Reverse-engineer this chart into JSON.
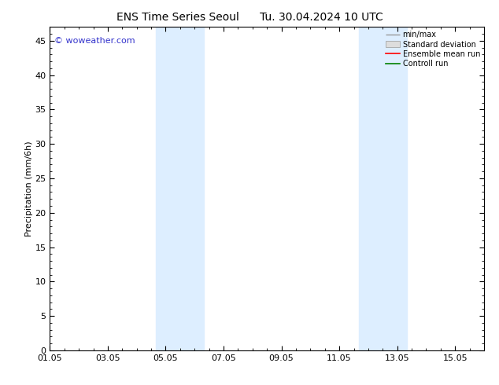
{
  "title_left": "ENS Time Series Seoul",
  "title_right": "Tu. 30.04.2024 10 UTC",
  "ylabel": "Precipitation (mm/6h)",
  "watermark": "© woweather.com",
  "watermark_color": "#3333cc",
  "ylim": [
    0,
    47
  ],
  "yticks": [
    0,
    5,
    10,
    15,
    20,
    25,
    30,
    35,
    40,
    45
  ],
  "total_days": 15,
  "xtick_labels": [
    "01.05",
    "03.05",
    "05.05",
    "07.05",
    "09.05",
    "11.05",
    "13.05",
    "15.05"
  ],
  "xtick_positions_days": [
    0,
    2,
    4,
    6,
    8,
    10,
    12,
    14
  ],
  "shaded_bands": [
    {
      "x_start_day": 3.67,
      "x_end_day": 5.33
    },
    {
      "x_start_day": 10.67,
      "x_end_day": 12.33
    }
  ],
  "shade_color": "#ddeeff",
  "background_color": "#ffffff",
  "legend_labels": [
    "min/max",
    "Standard deviation",
    "Ensemble mean run",
    "Controll run"
  ],
  "minmax_color": "#999999",
  "std_facecolor": "#dddddd",
  "std_edgecolor": "#999999",
  "ens_color": "#ff0000",
  "ctrl_color": "#008000",
  "title_fontsize": 10,
  "axis_label_fontsize": 8,
  "tick_fontsize": 8,
  "legend_fontsize": 7,
  "watermark_fontsize": 8
}
